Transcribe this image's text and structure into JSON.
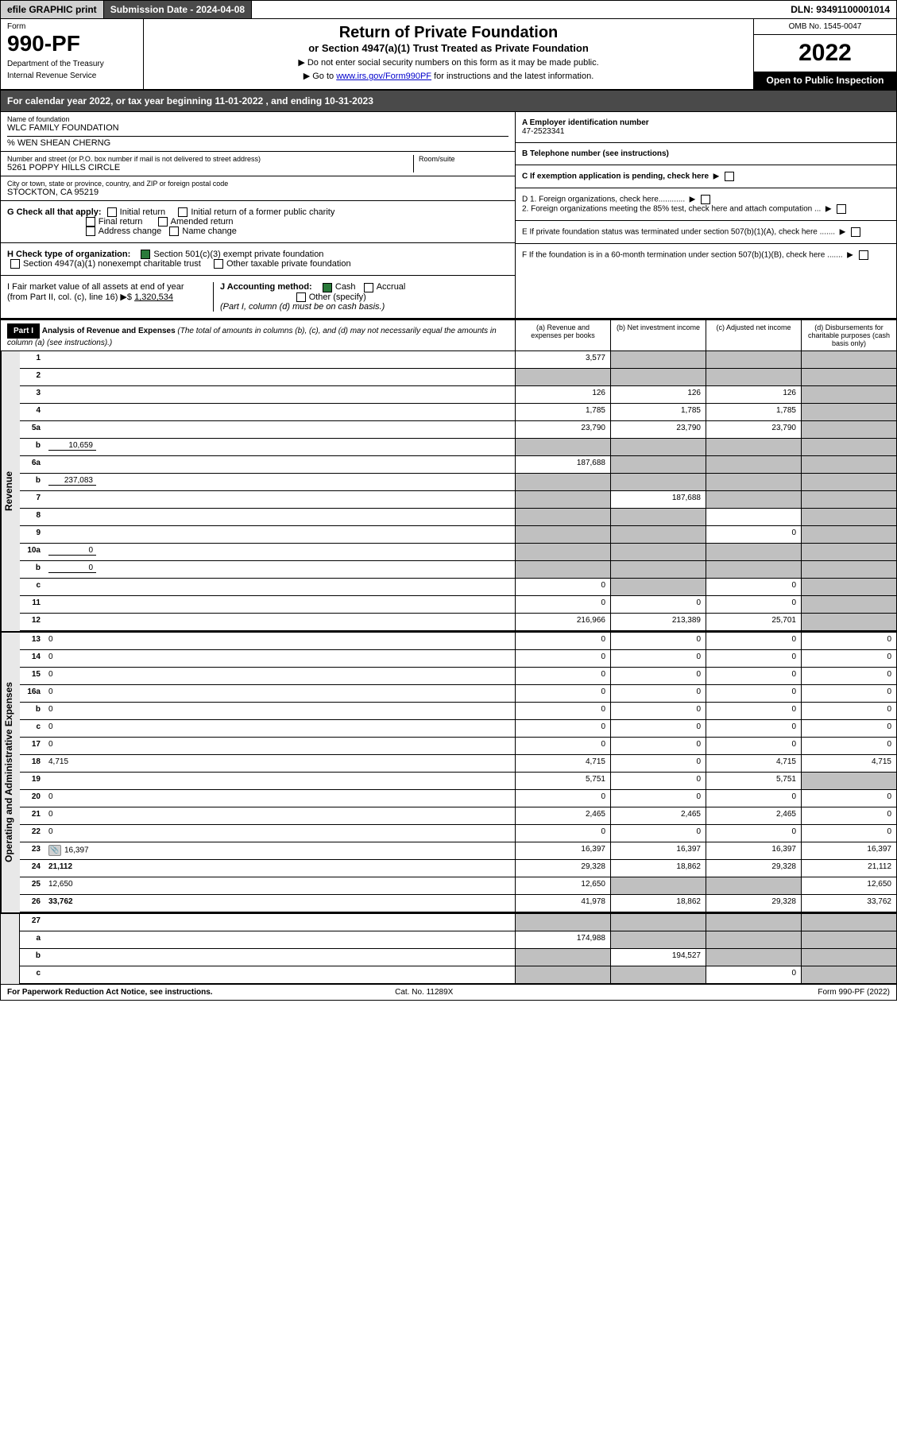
{
  "topbar": {
    "efile": "efile GRAPHIC print",
    "subdate": "Submission Date - 2024-04-08",
    "dln": "DLN: 93491100001014"
  },
  "header": {
    "form_label": "Form",
    "form_num": "990-PF",
    "dept1": "Department of the Treasury",
    "dept2": "Internal Revenue Service",
    "title": "Return of Private Foundation",
    "subtitle": "or Section 4947(a)(1) Trust Treated as Private Foundation",
    "arrow1": "▶ Do not enter social security numbers on this form as it may be made public.",
    "arrow2_pre": "▶ Go to ",
    "arrow2_link": "www.irs.gov/Form990PF",
    "arrow2_post": " for instructions and the latest information.",
    "omb": "OMB No. 1545-0047",
    "year": "2022",
    "open": "Open to Public Inspection"
  },
  "cal_year": "For calendar year 2022, or tax year beginning 11-01-2022                           , and ending 10-31-2023",
  "info": {
    "name_label": "Name of foundation",
    "name": "WLC FAMILY FOUNDATION",
    "co": "% WEN SHEAN CHERNG",
    "addr_label": "Number and street (or P.O. box number if mail is not delivered to street address)",
    "addr": "5261 POPPY HILLS CIRCLE",
    "room_label": "Room/suite",
    "city_label": "City or town, state or province, country, and ZIP or foreign postal code",
    "city": "STOCKTON, CA  95219",
    "ein_label": "A Employer identification number",
    "ein": "47-2523341",
    "tel_label": "B Telephone number (see instructions)",
    "c_label": "C If exemption application is pending, check here",
    "d1": "D 1. Foreign organizations, check here............",
    "d2": "2. Foreign organizations meeting the 85% test, check here and attach computation ...",
    "e": "E   If private foundation status was terminated under section 507(b)(1)(A), check here .......",
    "f": "F   If the foundation is in a 60-month termination under section 507(b)(1)(B), check here ......."
  },
  "checks": {
    "g_label": "G Check all that apply:",
    "g1": "Initial return",
    "g2": "Final return",
    "g3": "Address change",
    "g4": "Initial return of a former public charity",
    "g5": "Amended return",
    "g6": "Name change",
    "h_label": "H Check type of organization:",
    "h1": "Section 501(c)(3) exempt private foundation",
    "h2": "Section 4947(a)(1) nonexempt charitable trust",
    "h3": "Other taxable private foundation",
    "i_label": "I Fair market value of all assets at end of year (from Part II, col. (c), line 16) ▶$",
    "i_val": "1,320,534",
    "j_label": "J Accounting method:",
    "j1": "Cash",
    "j2": "Accrual",
    "j3": "Other (specify)",
    "j_note": "(Part I, column (d) must be on cash basis.)"
  },
  "part1": {
    "label": "Part I",
    "title": "Analysis of Revenue and Expenses",
    "note": "(The total of amounts in columns (b), (c), and (d) may not necessarily equal the amounts in column (a) (see instructions).)",
    "col_a": "(a)   Revenue and expenses per books",
    "col_b": "(b)   Net investment income",
    "col_c": "(c)   Adjusted net income",
    "col_d": "(d)   Disbursements for charitable purposes (cash basis only)"
  },
  "rev_label": "Revenue",
  "exp_label": "Operating and Administrative Expenses",
  "rows": [
    {
      "n": "1",
      "d": "",
      "a": "3,577",
      "b": "",
      "c": "",
      "sa": false,
      "sb": true,
      "sc": true,
      "sd": true
    },
    {
      "n": "2",
      "d": "",
      "a": "",
      "b": "",
      "c": "",
      "sa": true,
      "sb": true,
      "sc": true,
      "sd": true,
      "bold": false
    },
    {
      "n": "3",
      "d": "",
      "a": "126",
      "b": "126",
      "c": "126",
      "sd": true
    },
    {
      "n": "4",
      "d": "",
      "a": "1,785",
      "b": "1,785",
      "c": "1,785",
      "sd": true
    },
    {
      "n": "5a",
      "d": "",
      "a": "23,790",
      "b": "23,790",
      "c": "23,790",
      "sd": true
    },
    {
      "n": "b",
      "d": "",
      "inline": "10,659",
      "a": "",
      "b": "",
      "c": "",
      "sa": true,
      "sb": true,
      "sc": true,
      "sd": true
    },
    {
      "n": "6a",
      "d": "",
      "a": "187,688",
      "b": "",
      "c": "",
      "sb": true,
      "sc": true,
      "sd": true
    },
    {
      "n": "b",
      "d": "",
      "inline": "237,083",
      "a": "",
      "b": "",
      "c": "",
      "sa": true,
      "sb": true,
      "sc": true,
      "sd": true
    },
    {
      "n": "7",
      "d": "",
      "a": "",
      "b": "187,688",
      "c": "",
      "sa": true,
      "sc": true,
      "sd": true
    },
    {
      "n": "8",
      "d": "",
      "a": "",
      "b": "",
      "c": "",
      "sa": true,
      "sb": true,
      "sd": true
    },
    {
      "n": "9",
      "d": "",
      "a": "",
      "b": "",
      "c": "0",
      "sa": true,
      "sb": true,
      "sd": true
    },
    {
      "n": "10a",
      "d": "",
      "inline": "0",
      "a": "",
      "b": "",
      "c": "",
      "sa": true,
      "sb": true,
      "sc": true,
      "sd": true
    },
    {
      "n": "b",
      "d": "",
      "inline": "0",
      "a": "",
      "b": "",
      "c": "",
      "sa": true,
      "sb": true,
      "sc": true,
      "sd": true
    },
    {
      "n": "c",
      "d": "",
      "a": "0",
      "b": "",
      "c": "0",
      "sb": true,
      "sd": true
    },
    {
      "n": "11",
      "d": "",
      "a": "0",
      "b": "0",
      "c": "0",
      "sd": true
    },
    {
      "n": "12",
      "d": "",
      "a": "216,966",
      "b": "213,389",
      "c": "25,701",
      "sd": true,
      "bold": true
    }
  ],
  "exp_rows": [
    {
      "n": "13",
      "d": "0",
      "a": "0",
      "b": "0",
      "c": "0"
    },
    {
      "n": "14",
      "d": "0",
      "a": "0",
      "b": "0",
      "c": "0"
    },
    {
      "n": "15",
      "d": "0",
      "a": "0",
      "b": "0",
      "c": "0"
    },
    {
      "n": "16a",
      "d": "0",
      "a": "0",
      "b": "0",
      "c": "0"
    },
    {
      "n": "b",
      "d": "0",
      "a": "0",
      "b": "0",
      "c": "0"
    },
    {
      "n": "c",
      "d": "0",
      "a": "0",
      "b": "0",
      "c": "0"
    },
    {
      "n": "17",
      "d": "0",
      "a": "0",
      "b": "0",
      "c": "0"
    },
    {
      "n": "18",
      "d": "4,715",
      "a": "4,715",
      "b": "0",
      "c": "4,715"
    },
    {
      "n": "19",
      "d": "",
      "a": "5,751",
      "b": "0",
      "c": "5,751",
      "sd": true
    },
    {
      "n": "20",
      "d": "0",
      "a": "0",
      "b": "0",
      "c": "0"
    },
    {
      "n": "21",
      "d": "0",
      "a": "2,465",
      "b": "2,465",
      "c": "2,465"
    },
    {
      "n": "22",
      "d": "0",
      "a": "0",
      "b": "0",
      "c": "0"
    },
    {
      "n": "23",
      "d": "16,397",
      "a": "16,397",
      "b": "16,397",
      "c": "16,397",
      "icon": true
    },
    {
      "n": "24",
      "d": "21,112",
      "a": "29,328",
      "b": "18,862",
      "c": "29,328",
      "bold": true
    },
    {
      "n": "25",
      "d": "12,650",
      "a": "12,650",
      "b": "",
      "c": "",
      "sb": true,
      "sc": true
    },
    {
      "n": "26",
      "d": "33,762",
      "a": "41,978",
      "b": "18,862",
      "c": "29,328",
      "bold": true
    }
  ],
  "final_rows": [
    {
      "n": "27",
      "d": "",
      "a": "",
      "b": "",
      "c": "",
      "sa": true,
      "sb": true,
      "sc": true,
      "sd": true
    },
    {
      "n": "a",
      "d": "",
      "a": "174,988",
      "b": "",
      "c": "",
      "sb": true,
      "sc": true,
      "sd": true,
      "bold": true
    },
    {
      "n": "b",
      "d": "",
      "a": "",
      "b": "194,527",
      "c": "",
      "sa": true,
      "sc": true,
      "sd": true,
      "bold": true
    },
    {
      "n": "c",
      "d": "",
      "a": "",
      "b": "",
      "c": "0",
      "sa": true,
      "sb": true,
      "sd": true,
      "bold": true
    }
  ],
  "footer": {
    "left": "For Paperwork Reduction Act Notice, see instructions.",
    "mid": "Cat. No. 11289X",
    "right": "Form 990-PF (2022)"
  }
}
